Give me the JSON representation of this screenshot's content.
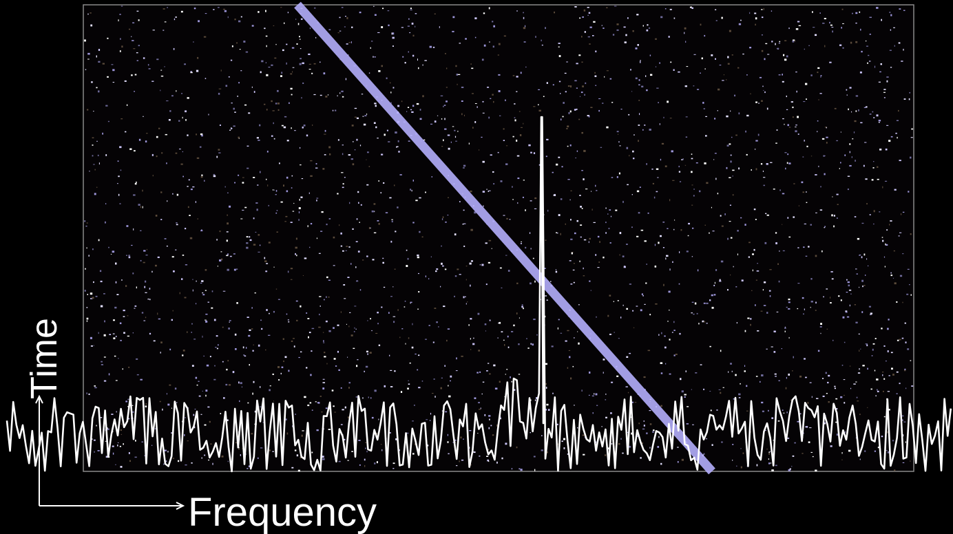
{
  "axes": {
    "y_label": "Time",
    "x_label": "Frequency"
  }
}
